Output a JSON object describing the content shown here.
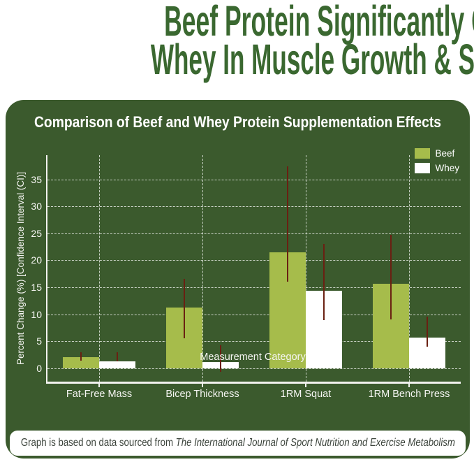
{
  "header": {
    "line1": "Beef Protein Significantly Outperforms",
    "line2": "Whey In Muscle Growth & Strength",
    "color": "#3a6830"
  },
  "panel": {
    "bg": "#3b5a2d"
  },
  "chart_data": {
    "type": "bar",
    "title": "Comparison of Beef and Whey Protein Supplementation Effects",
    "categories": [
      "Fat-Free Mass",
      "Bicep Thickness",
      "1RM Squat",
      "1RM Bench Press"
    ],
    "series": [
      {
        "name": "Beef",
        "color": "#a6bc4b",
        "values": [
          2.0,
          11.3,
          21.5,
          15.7
        ],
        "ci_low": [
          1.4,
          5.5,
          16.0,
          9.0
        ],
        "ci_high": [
          2.9,
          16.5,
          37.4,
          24.7
        ]
      },
      {
        "name": "Whey",
        "color": "#ffffff",
        "values": [
          1.3,
          1.1,
          14.4,
          5.7
        ],
        "ci_low": [
          1.2,
          -0.7,
          8.9,
          4.0
        ],
        "ci_high": [
          2.9,
          4.2,
          23.0,
          9.6
        ]
      }
    ],
    "xlabel": "Measurement Category",
    "ylabel": "Percent Change (%) [Confidence Interval (CI)]",
    "yticks": [
      0,
      5,
      10,
      15,
      20,
      25,
      30,
      35
    ],
    "ylim": [
      -2.5,
      39.5
    ],
    "grid": true,
    "grid_style": "dashed",
    "grid_color": "rgba(255,255,255,0.72)",
    "axis_color": "#f2f2ef",
    "errorbar_color": "#6a2012",
    "legend_position": "upper right",
    "text_color": "#ffffff"
  },
  "footer": {
    "text_regular": "Graph is based on data sourced from ",
    "text_italic": "The International Journal of Sport Nutrition and Exercise Metabolism"
  }
}
